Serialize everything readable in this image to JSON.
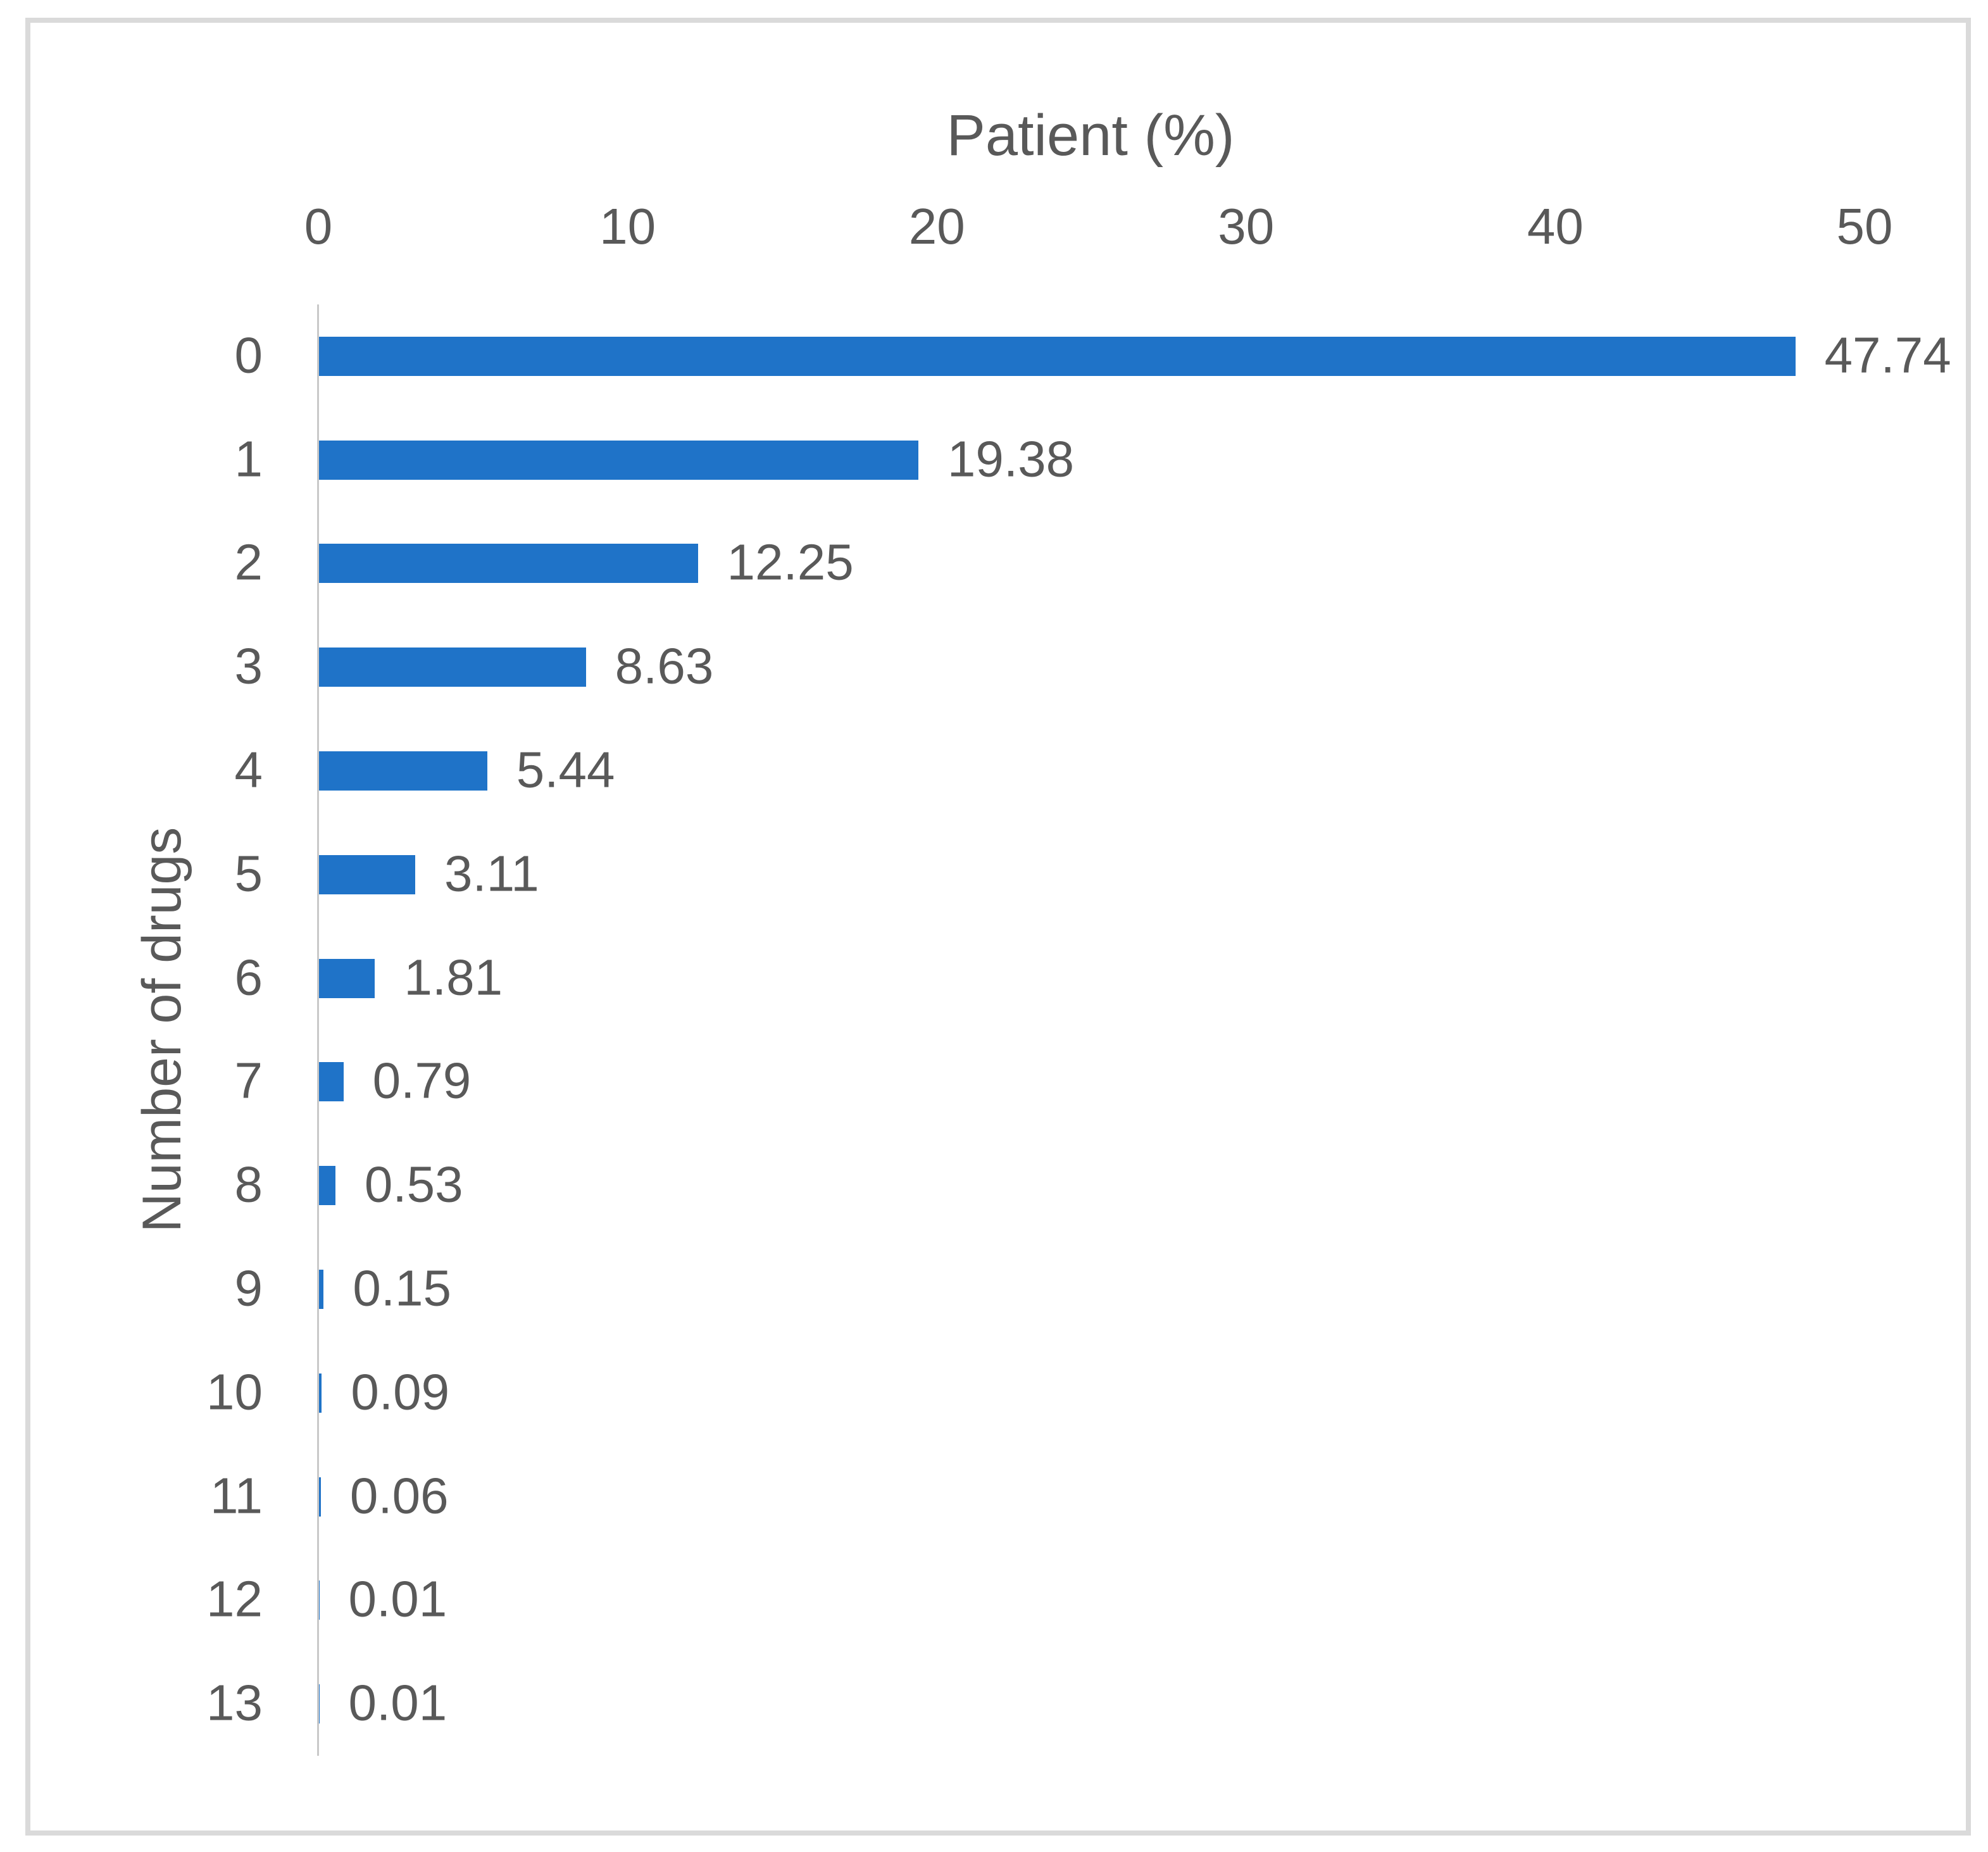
{
  "chart_data": {
    "type": "bar",
    "orientation": "horizontal",
    "xlabel": "Patient (%)",
    "ylabel": "Number of drugs",
    "categories": [
      "0",
      "1",
      "2",
      "3",
      "4",
      "5",
      "6",
      "7",
      "8",
      "9",
      "10",
      "11",
      "12",
      "13"
    ],
    "values": [
      47.74,
      19.38,
      12.25,
      8.63,
      5.44,
      3.11,
      1.81,
      0.79,
      0.53,
      0.15,
      0.09,
      0.06,
      0.01,
      0.01
    ],
    "value_labels": [
      "47.74",
      "19.38",
      "12.25",
      "8.63",
      "5.44",
      "3.11",
      "1.81",
      "0.79",
      "0.53",
      "0.15",
      "0.09",
      "0.06",
      "0.01",
      "0.01"
    ],
    "x_ticks": [
      "0",
      "10",
      "20",
      "30",
      "40",
      "50"
    ],
    "xlim": [
      0,
      50
    ],
    "grid": false,
    "legend_visible": false,
    "colors": {
      "bar": "#1f73c8",
      "text": "#595959",
      "axis_line": "#c9c9c9",
      "frame_border": "#dadada",
      "background": "#ffffff"
    }
  }
}
